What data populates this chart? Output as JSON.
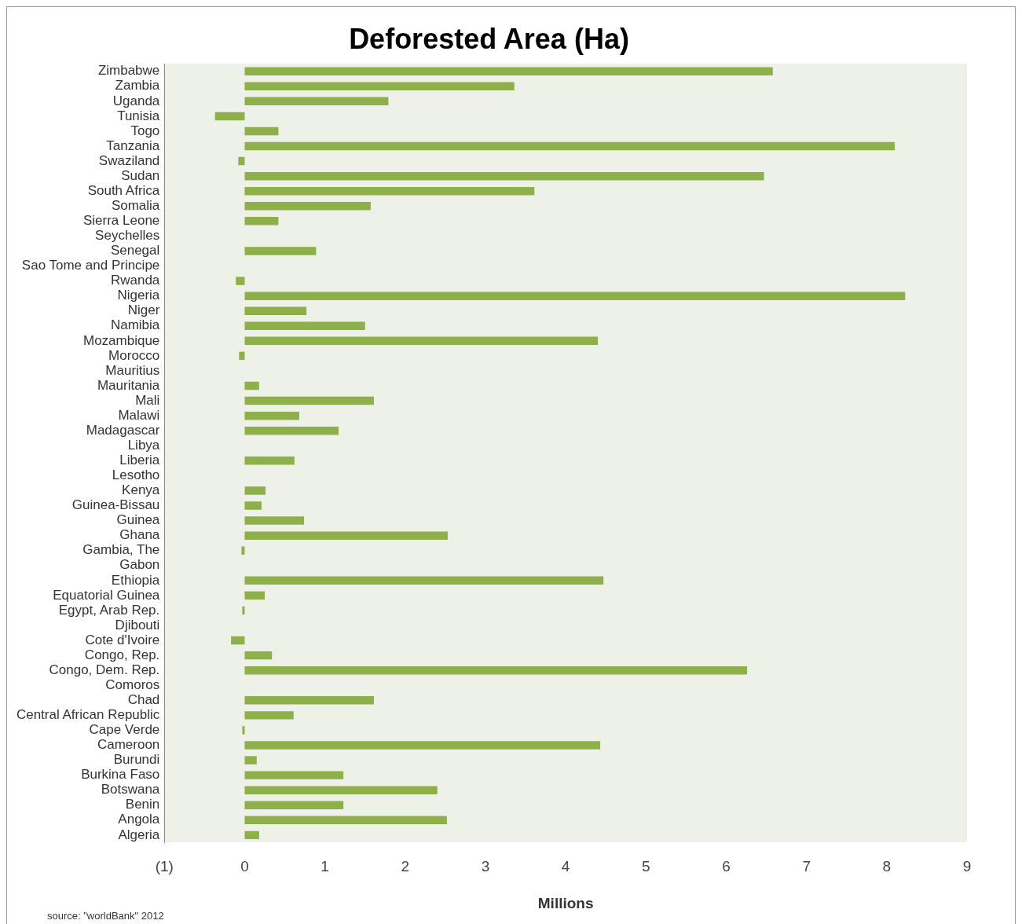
{
  "chart_data": {
    "type": "bar",
    "orientation": "horizontal",
    "title": "Deforested Area (Ha)",
    "xlabel": "Millions",
    "categories": [
      "Zimbabwe",
      "Zambia",
      "Uganda",
      "Tunisia",
      "Togo",
      "Tanzania",
      "Swaziland",
      "Sudan",
      "South Africa",
      "Somalia",
      "Sierra Leone",
      "Seychelles",
      "Senegal",
      "Sao Tome and Principe",
      "Rwanda",
      "Nigeria",
      "Niger",
      "Namibia",
      "Mozambique",
      "Morocco",
      "Mauritius",
      "Mauritania",
      "Mali",
      "Malawi",
      "Madagascar",
      "Libya",
      "Liberia",
      "Lesotho",
      "Kenya",
      "Guinea-Bissau",
      "Guinea",
      "Ghana",
      "Gambia, The",
      "Gabon",
      "Ethiopia",
      "Equatorial Guinea",
      "Egypt, Arab Rep.",
      "Djibouti",
      "Cote d'Ivoire",
      "Congo, Rep.",
      "Congo, Dem. Rep.",
      "Comoros",
      "Chad",
      "Central African Republic",
      "Cape Verde",
      "Cameroon",
      "Burundi",
      "Burkina Faso",
      "Botswana",
      "Benin",
      "Angola",
      "Algeria"
    ],
    "values": [
      6.58,
      3.36,
      1.79,
      -0.37,
      0.42,
      8.1,
      -0.08,
      6.47,
      3.61,
      1.57,
      0.42,
      0,
      0.89,
      0,
      -0.11,
      8.23,
      0.77,
      1.5,
      4.4,
      -0.07,
      0,
      0.18,
      1.61,
      0.68,
      1.17,
      0,
      0.62,
      0,
      0.26,
      0.21,
      0.74,
      2.53,
      -0.04,
      0,
      4.47,
      0.25,
      -0.03,
      0,
      -0.17,
      0.34,
      6.26,
      0,
      1.61,
      0.61,
      -0.03,
      4.43,
      0.15,
      1.23,
      2.4,
      1.23,
      2.52,
      0.18
    ],
    "color": "#8db04a",
    "xlim": [
      -1,
      9
    ],
    "xticks": [
      {
        "value": -1,
        "label": "(1)"
      },
      0,
      1,
      2,
      3,
      4,
      5,
      6,
      7,
      8,
      9
    ],
    "grid": false,
    "legend": false,
    "annotations": [
      "source: \"worldBank\" 2012"
    ]
  }
}
